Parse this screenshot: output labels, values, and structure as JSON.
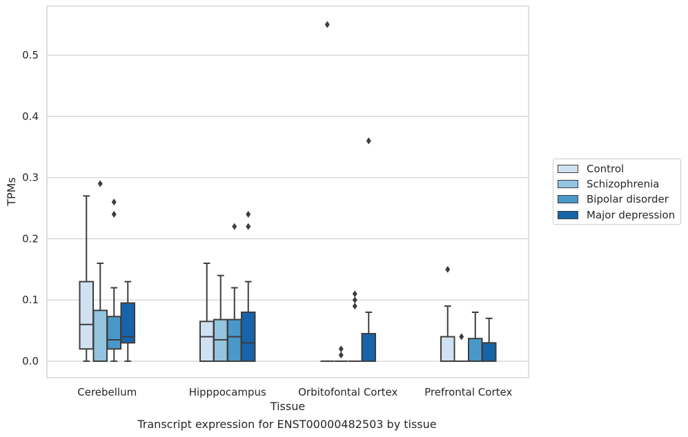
{
  "caption": "Transcript expression for ENST00000482503 by tissue",
  "chart_data": {
    "type": "box",
    "xlabel": "Tissue",
    "ylabel": "TPMs",
    "ylim": [
      -0.027,
      0.58
    ],
    "yticks": [
      "0.0",
      "0.1",
      "0.2",
      "0.3",
      "0.4",
      "0.5"
    ],
    "grid": true,
    "legend_placement": "center-right, outside plot",
    "categories": [
      "Cerebellum",
      "Hipppocampus",
      "Orbitofontal Cortex",
      "Prefrontal Cortex"
    ],
    "series": [
      {
        "name": "Control",
        "color": "#d0e1f2",
        "boxes": [
          {
            "whislo": 0.0,
            "q1": 0.02,
            "med": 0.06,
            "q3": 0.13,
            "whishi": 0.27,
            "fliers": []
          },
          {
            "whislo": 0.0,
            "q1": 0.0,
            "med": 0.04,
            "q3": 0.065,
            "whishi": 0.16,
            "fliers": []
          },
          {
            "whislo": 0.0,
            "q1": 0.0,
            "med": 0.0,
            "q3": 0.0,
            "whishi": 0.0,
            "fliers": [
              0.55
            ]
          },
          {
            "whislo": 0.0,
            "q1": 0.0,
            "med": 0.0,
            "q3": 0.04,
            "whishi": 0.09,
            "fliers": [
              0.15
            ]
          }
        ]
      },
      {
        "name": "Schizophrenia",
        "color": "#94c4df",
        "boxes": [
          {
            "whislo": 0.0,
            "q1": 0.0,
            "med": 0.0,
            "q3": 0.083,
            "whishi": 0.16,
            "fliers": [
              0.29
            ]
          },
          {
            "whislo": 0.0,
            "q1": 0.0,
            "med": 0.035,
            "q3": 0.068,
            "whishi": 0.14,
            "fliers": []
          },
          {
            "whislo": 0.0,
            "q1": 0.0,
            "med": 0.0,
            "q3": 0.0,
            "whishi": 0.0,
            "fliers": [
              0.01,
              0.02
            ]
          },
          {
            "whislo": 0.0,
            "q1": 0.0,
            "med": 0.0,
            "q3": 0.0,
            "whishi": 0.0,
            "fliers": [
              0.04
            ]
          }
        ]
      },
      {
        "name": "Bipolar disorder",
        "color": "#4a98c9",
        "boxes": [
          {
            "whislo": 0.0,
            "q1": 0.02,
            "med": 0.035,
            "q3": 0.073,
            "whishi": 0.12,
            "fliers": [
              0.24,
              0.26
            ]
          },
          {
            "whislo": 0.0,
            "q1": 0.0,
            "med": 0.04,
            "q3": 0.068,
            "whishi": 0.12,
            "fliers": [
              0.22
            ]
          },
          {
            "whislo": 0.0,
            "q1": 0.0,
            "med": 0.0,
            "q3": 0.0,
            "whishi": 0.0,
            "fliers": [
              0.09,
              0.1,
              0.11
            ]
          },
          {
            "whislo": 0.0,
            "q1": 0.0,
            "med": 0.0,
            "q3": 0.037,
            "whishi": 0.08,
            "fliers": []
          }
        ]
      },
      {
        "name": "Major depression",
        "color": "#1764ab",
        "boxes": [
          {
            "whislo": 0.0,
            "q1": 0.03,
            "med": 0.04,
            "q3": 0.095,
            "whishi": 0.13,
            "fliers": []
          },
          {
            "whislo": 0.0,
            "q1": 0.0,
            "med": 0.03,
            "q3": 0.08,
            "whishi": 0.13,
            "fliers": [
              0.22,
              0.24
            ]
          },
          {
            "whislo": 0.0,
            "q1": 0.0,
            "med": 0.0,
            "q3": 0.045,
            "whishi": 0.08,
            "fliers": [
              0.36
            ]
          },
          {
            "whislo": 0.0,
            "q1": 0.0,
            "med": 0.0,
            "q3": 0.03,
            "whishi": 0.07,
            "fliers": []
          }
        ]
      }
    ]
  }
}
